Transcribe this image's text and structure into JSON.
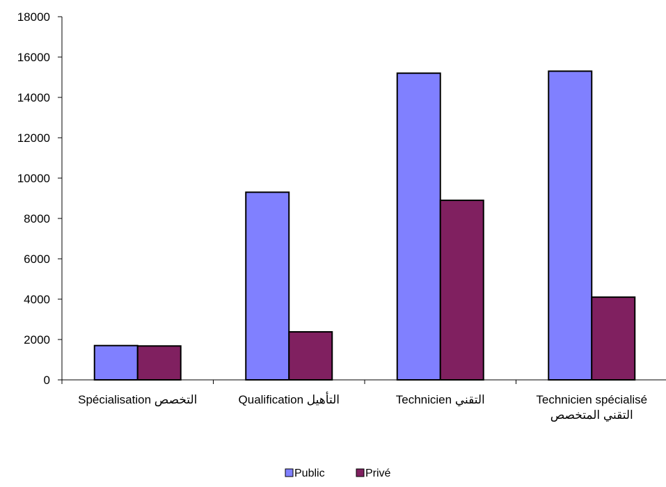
{
  "chart_data": {
    "type": "bar",
    "categories": [
      "Spécialisation التخصص",
      "Qualification التأهيل",
      "Technicien التقني",
      "Technicien spécialisé التقني المتخصص"
    ],
    "category_lines": [
      [
        "Spécialisation التخصص"
      ],
      [
        "Qualification التأهيل"
      ],
      [
        "Technicien التقني"
      ],
      [
        "Technicien spécialisé",
        "التقني المتخصص"
      ]
    ],
    "series": [
      {
        "name": "Public",
        "values": [
          1700,
          9300,
          15200,
          15300
        ],
        "color": "#8080ff"
      },
      {
        "name": "Privé",
        "values": [
          1680,
          2380,
          8900,
          4100
        ],
        "color": "#802060"
      }
    ],
    "ylim": [
      0,
      18000
    ],
    "yticks": [
      "0",
      "2000",
      "4000",
      "6000",
      "8000",
      "10000",
      "12000",
      "14000",
      "16000",
      "18000"
    ],
    "grid": false,
    "legend_position": "bottom-center",
    "title": "",
    "xlabel": "",
    "ylabel": ""
  }
}
